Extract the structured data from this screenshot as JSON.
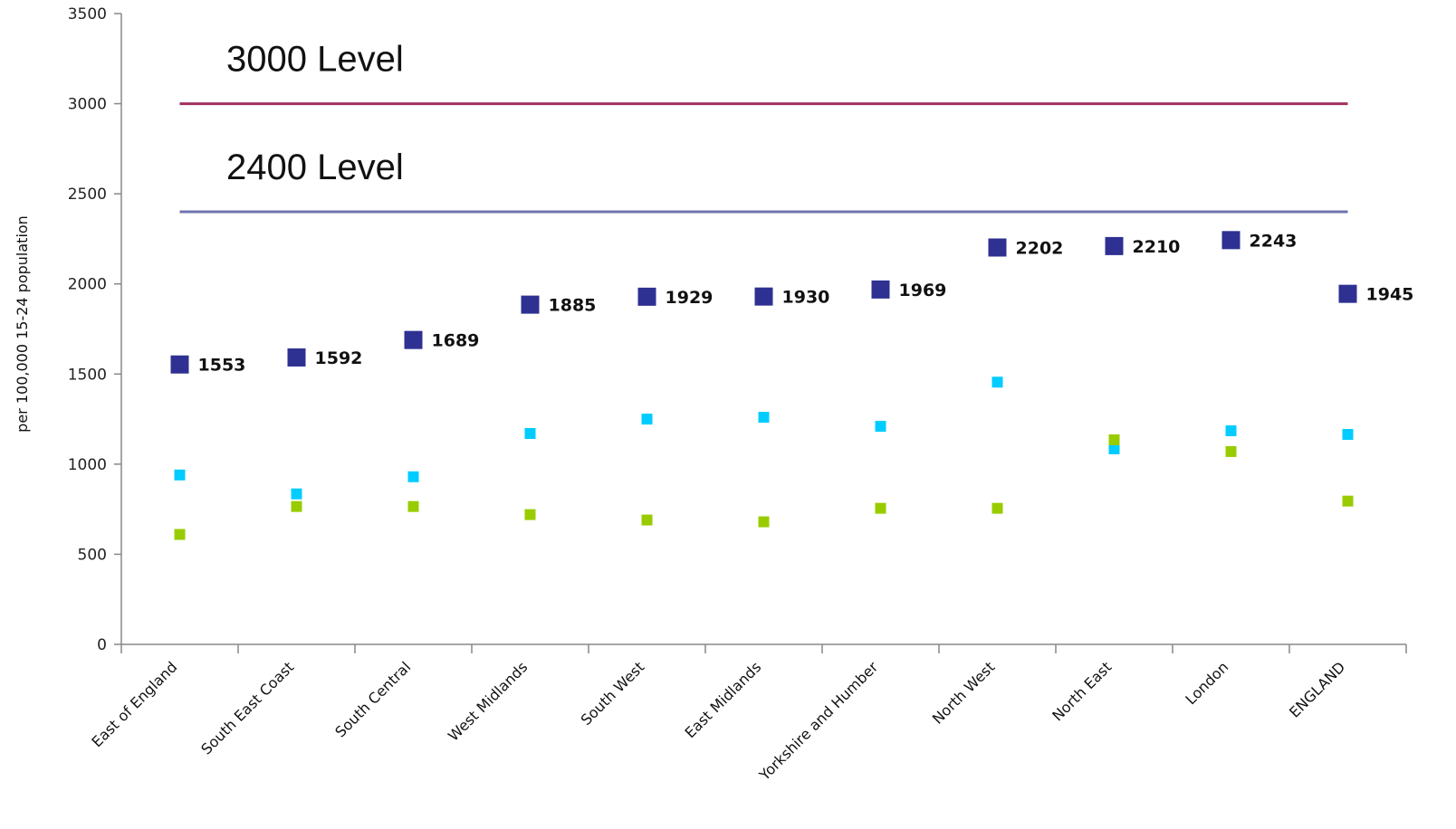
{
  "chart_data": {
    "type": "scatter",
    "ylabel": "per 100,000 15-24 population",
    "ylim": [
      0,
      3500
    ],
    "yticks": [
      0,
      500,
      1000,
      1500,
      2000,
      2500,
      3000,
      3500
    ],
    "categories": [
      "East of England",
      "South East Coast",
      "South Central",
      "West Midlands",
      "South West",
      "East Midlands",
      "Yorkshire and Humber",
      "North West",
      "North East",
      "London",
      "ENGLAND"
    ],
    "series": [
      {
        "color": "#2E3192",
        "marker": "large-square",
        "data_labels": true,
        "values": [
          1553,
          1592,
          1689,
          1885,
          1929,
          1930,
          1969,
          2202,
          2210,
          2243,
          1945
        ]
      },
      {
        "color": "#00CCFF",
        "marker": "small-square",
        "data_labels": false,
        "values": [
          940,
          835,
          930,
          1170,
          1250,
          1260,
          1210,
          1455,
          1085,
          1185,
          1165
        ]
      },
      {
        "color": "#99CC00",
        "marker": "small-square",
        "data_labels": false,
        "values": [
          610,
          765,
          765,
          720,
          690,
          680,
          755,
          755,
          1135,
          1070,
          795
        ]
      }
    ],
    "reference_lines": [
      {
        "value": 3000,
        "label": "3000 Level",
        "color": "#A0305F"
      },
      {
        "value": 2400,
        "label": "2400 Level",
        "color": "#6F73AD"
      }
    ],
    "grid": false,
    "legend": "none"
  }
}
